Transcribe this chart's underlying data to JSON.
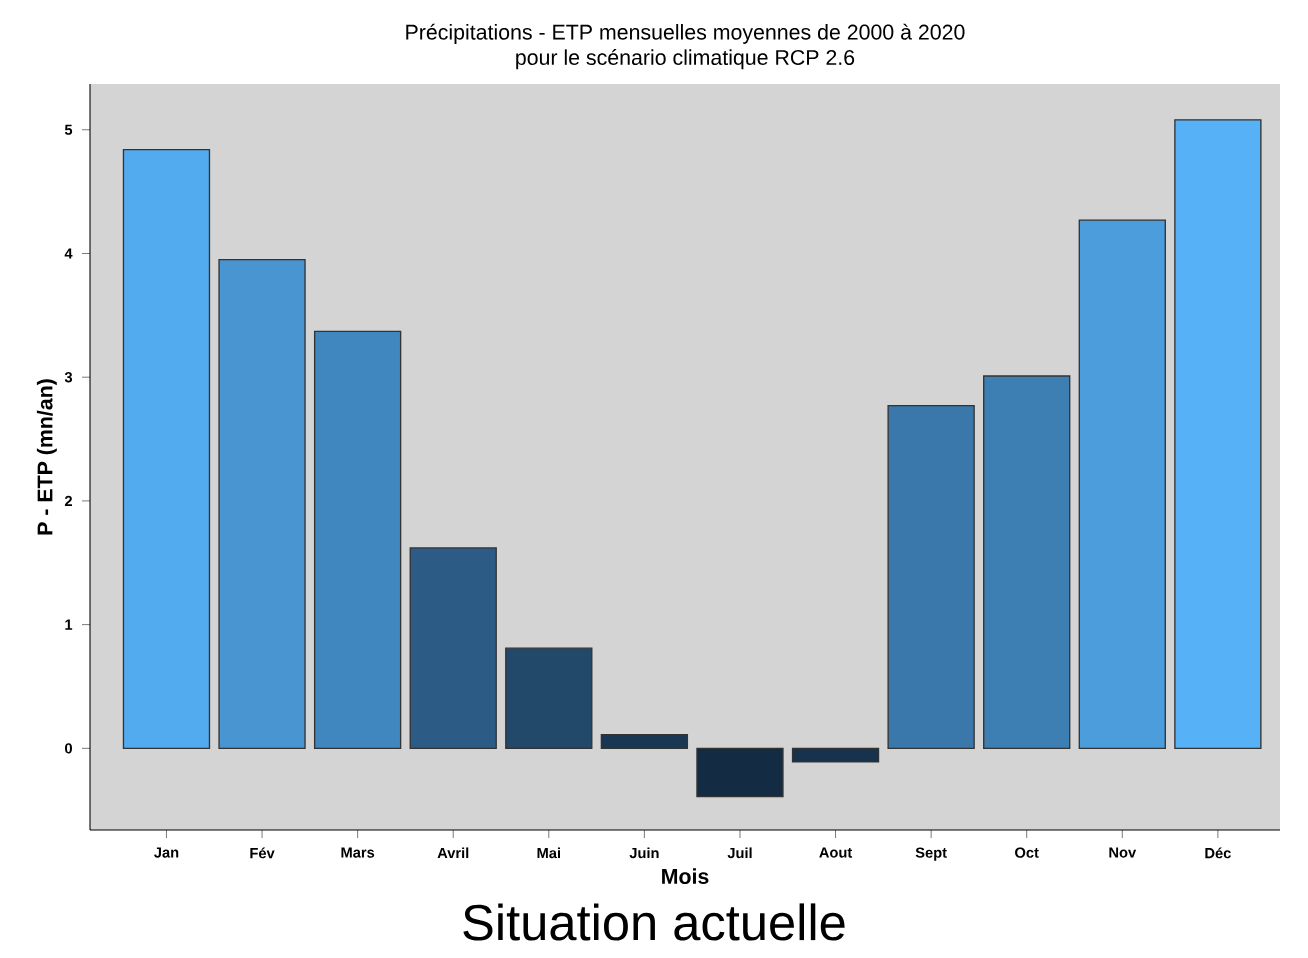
{
  "chart_data": {
    "type": "bar",
    "title": "Précipitations - ETP mensuelles moyennes de 2000 à 2020",
    "subtitle": "pour le scénario climatique RCP 2.6",
    "xlabel": "Mois",
    "ylabel": "P - ETP (mn/an)",
    "annotations": [
      "Situation actuelle"
    ],
    "categories": [
      "Jan",
      "Fév",
      "Mars",
      "Avril",
      "Mai",
      "Juin",
      "Juil",
      "Aout",
      "Sept",
      "Oct",
      "Nov",
      "Déc"
    ],
    "values": [
      4.84,
      3.95,
      3.37,
      1.62,
      0.81,
      0.11,
      -0.39,
      -0.11,
      2.77,
      3.01,
      4.27,
      5.08
    ],
    "colors": [
      "#53abef",
      "#4895d2",
      "#4187bf",
      "#2c5c85",
      "#22486a",
      "#193753",
      "#132b43",
      "#16324c",
      "#3a78ab",
      "#3d7eb3",
      "#4c9ddc",
      "#56b1f7"
    ],
    "ylim": [
      -0.66,
      5.37
    ],
    "yticks": [
      0,
      1,
      2,
      3,
      4,
      5
    ],
    "grid": false
  }
}
